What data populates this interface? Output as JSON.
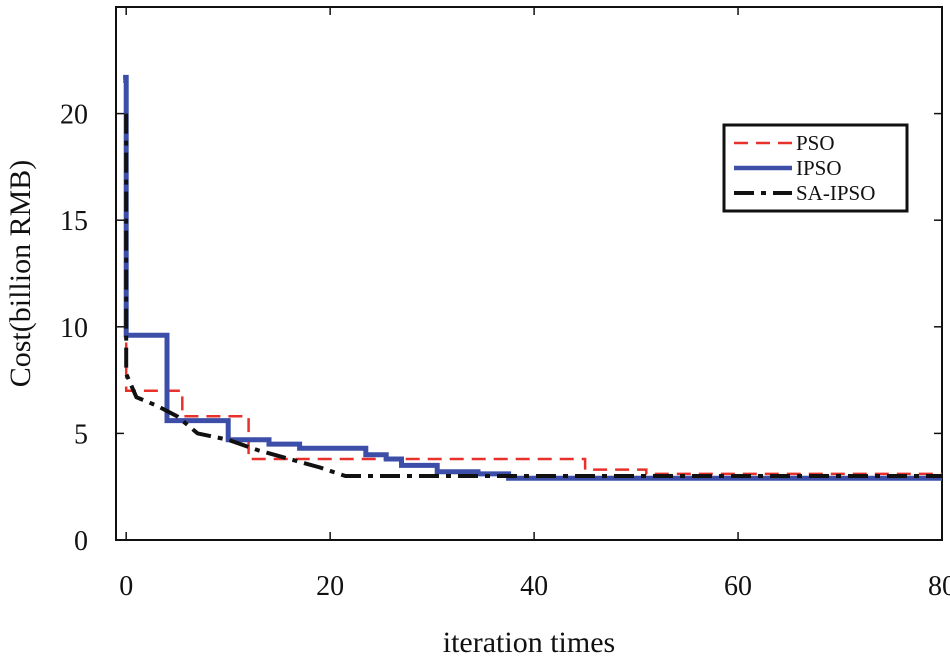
{
  "chart_data": {
    "type": "line",
    "title": "",
    "xlabel": "iteration times",
    "ylabel": "Cost(billion RMB)",
    "xlim": [
      -1,
      80
    ],
    "ylim": [
      0,
      25
    ],
    "xticks": [
      0,
      20,
      40,
      60,
      80
    ],
    "yticks": [
      0,
      5,
      10,
      15,
      20
    ],
    "xtick_labels": [
      "0",
      "20",
      "40",
      "60",
      "80"
    ],
    "ytick_labels": [
      "0",
      "5",
      "10",
      "15",
      "20"
    ],
    "grid": false,
    "legend_position": "top-right",
    "series": [
      {
        "name": "PSO",
        "color": "#e8312a",
        "style": "dashed",
        "points": [
          [
            -0.3,
            21.5
          ],
          [
            0,
            21.5
          ],
          [
            0,
            7.0
          ],
          [
            5.5,
            7.0
          ],
          [
            5.5,
            5.8
          ],
          [
            12,
            5.8
          ],
          [
            12,
            3.8
          ],
          [
            45,
            3.8
          ],
          [
            45,
            3.3
          ],
          [
            51,
            3.3
          ],
          [
            51,
            3.1
          ],
          [
            80,
            3.1
          ]
        ]
      },
      {
        "name": "IPSO",
        "color": "#3c4ea8",
        "style": "solid",
        "points": [
          [
            -0.3,
            21.7
          ],
          [
            0,
            21.7
          ],
          [
            0,
            9.6
          ],
          [
            4,
            9.6
          ],
          [
            4,
            5.6
          ],
          [
            10,
            5.6
          ],
          [
            10,
            4.7
          ],
          [
            14,
            4.7
          ],
          [
            14,
            4.5
          ],
          [
            17,
            4.5
          ],
          [
            17,
            4.3
          ],
          [
            23.5,
            4.3
          ],
          [
            23.5,
            4.0
          ],
          [
            25.5,
            4.0
          ],
          [
            25.5,
            3.8
          ],
          [
            27,
            3.8
          ],
          [
            27,
            3.5
          ],
          [
            30.5,
            3.5
          ],
          [
            30.5,
            3.2
          ],
          [
            34.5,
            3.2
          ],
          [
            34.5,
            3.1
          ],
          [
            37.5,
            3.1
          ],
          [
            37.5,
            2.9
          ],
          [
            80,
            2.9
          ]
        ]
      },
      {
        "name": "SA-IPSO",
        "color": "#111111",
        "style": "dashdot",
        "points": [
          [
            0,
            20.0
          ],
          [
            0,
            7.8
          ],
          [
            1,
            6.7
          ],
          [
            3,
            6.3
          ],
          [
            5,
            5.8
          ],
          [
            7,
            5.0
          ],
          [
            10,
            4.7
          ],
          [
            13,
            4.2
          ],
          [
            16,
            3.8
          ],
          [
            19,
            3.4
          ],
          [
            21.5,
            3.0
          ],
          [
            80,
            3.0
          ]
        ]
      }
    ]
  }
}
